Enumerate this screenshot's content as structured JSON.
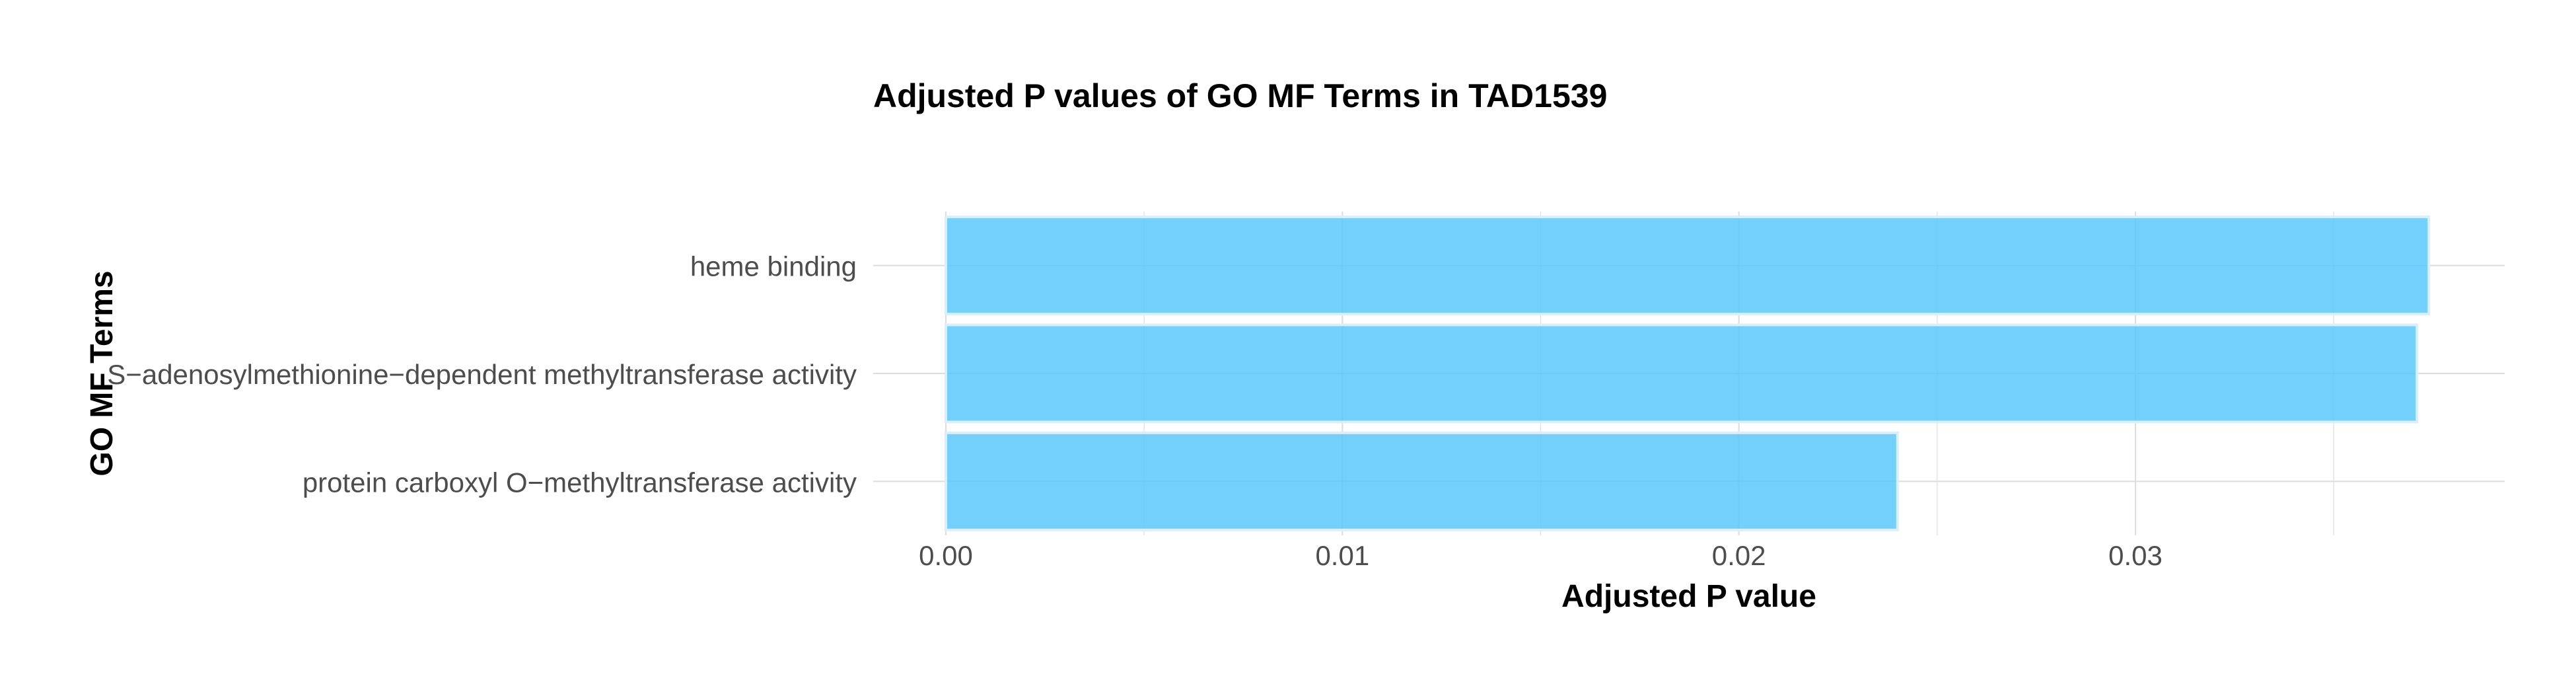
{
  "chart_data": {
    "type": "bar",
    "orientation": "horizontal",
    "title": "Adjusted P values of GO MF Terms in TAD1539",
    "xlabel": "Adjusted P value",
    "ylabel": "GO MF Terms",
    "categories": [
      "heme binding",
      "S−adenosylmethionine−dependent methyltransferase activity",
      "protein carboxyl O−methyltransferase activity"
    ],
    "values": [
      0.0374,
      0.0371,
      0.024
    ],
    "xlim": [
      0,
      0.0393
    ],
    "xticks": [
      0.0,
      0.01,
      0.02,
      0.03
    ],
    "xtick_labels": [
      "0.00",
      "0.01",
      "0.02",
      "0.03"
    ],
    "grid": true,
    "bar_color": "#5BC8FA",
    "bar_outline": "#DCEEF8",
    "grid_color": "#DEDEDE"
  }
}
